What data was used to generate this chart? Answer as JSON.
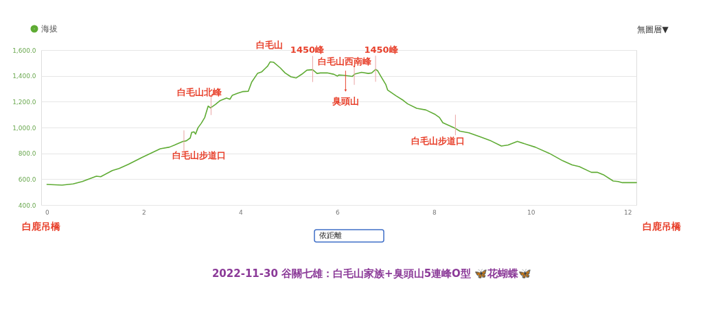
{
  "chart_data": {
    "type": "line",
    "title": "2022-11-30 谷關七雄：白毛山家族+臭頭山5連峰O型 🦋花蝴蝶🦋",
    "xlim": [
      -0.12,
      12.18
    ],
    "xticks": [
      0,
      2,
      4,
      6,
      8,
      10,
      12
    ],
    "ylim": [
      400,
      1600
    ],
    "yticks": [
      {
        "value": 400,
        "label": "400.0"
      },
      {
        "value": 600,
        "label": "600.0"
      },
      {
        "value": 800,
        "label": "800.0"
      },
      {
        "value": 1000,
        "label": "1,000.0"
      },
      {
        "value": 1200,
        "label": "1,200.0"
      },
      {
        "value": 1400,
        "label": "1,400.0"
      },
      {
        "value": 1600,
        "label": "1,600.0"
      }
    ],
    "grid": "y",
    "legend": "top left",
    "series": [
      {
        "name": "海拔",
        "color": "#5eab33",
        "x": [
          0,
          0.31,
          0.54,
          0.73,
          1.02,
          1.11,
          1.35,
          1.49,
          1.68,
          1.96,
          2.34,
          2.53,
          2.81,
          2.88,
          2.96,
          2.99,
          3.04,
          3.07,
          3.12,
          3.19,
          3.26,
          3.33,
          3.38,
          3.48,
          3.57,
          3.71,
          3.78,
          3.83,
          3.95,
          4.04,
          4.16,
          4.23,
          4.35,
          4.44,
          4.51,
          4.56,
          4.61,
          4.68,
          4.82,
          4.92,
          5.04,
          5.15,
          5.27,
          5.37,
          5.49,
          5.58,
          5.65,
          5.79,
          5.93,
          6.0,
          6.03,
          6.12,
          6.31,
          6.36,
          6.5,
          6.64,
          6.71,
          6.79,
          6.83,
          6.9,
          7.0,
          7.04,
          7.21,
          7.36,
          7.45,
          7.64,
          7.83,
          8.01,
          8.11,
          8.18,
          8.44,
          8.53,
          8.72,
          8.96,
          9.15,
          9.39,
          9.53,
          9.72,
          9.95,
          10.09,
          10.38,
          10.66,
          10.85,
          11.0,
          11.25,
          11.37,
          11.51,
          11.7,
          11.8,
          11.89,
          12.18
        ],
        "values": [
          559,
          554,
          563,
          582,
          623,
          619,
          667,
          683,
          715,
          768,
          835,
          848,
          892,
          897,
          919,
          963,
          966,
          949,
          998,
          1034,
          1078,
          1166,
          1152,
          1179,
          1207,
          1228,
          1219,
          1250,
          1267,
          1278,
          1281,
          1352,
          1419,
          1432,
          1458,
          1476,
          1508,
          1506,
          1462,
          1423,
          1393,
          1384,
          1414,
          1444,
          1448,
          1419,
          1423,
          1423,
          1412,
          1398,
          1407,
          1405,
          1396,
          1414,
          1427,
          1419,
          1423,
          1450,
          1441,
          1396,
          1334,
          1290,
          1246,
          1211,
          1184,
          1149,
          1136,
          1104,
          1078,
          1037,
          993,
          972,
          959,
          927,
          901,
          857,
          865,
          892,
          865,
          848,
          800,
          742,
          711,
          697,
          653,
          653,
          632,
          586,
          582,
          573,
          573
        ]
      }
    ],
    "annotations": [
      {
        "text": "白毛山步道口",
        "x": 2.83,
        "y": 893
      },
      {
        "text": "白毛山北峰",
        "x": 3.39,
        "y": 1155
      },
      {
        "text": "白毛山",
        "x": 4.65,
        "y": 1507
      },
      {
        "text": "1450峰",
        "x": 5.49,
        "y": 1448
      },
      {
        "text": "白毛山西南峰",
        "x": 6.35,
        "y": 1410
      },
      {
        "text": "臭頭山",
        "x": 6.17,
        "y": 1403
      },
      {
        "text": "1450峰",
        "x": 6.79,
        "y": 1450
      },
      {
        "text": "白毛山步道口",
        "x": 8.44,
        "y": 993
      },
      "白鹿吊橋",
      "白鹿吊橋",
      "無圖層▼",
      "依距離"
    ]
  }
}
